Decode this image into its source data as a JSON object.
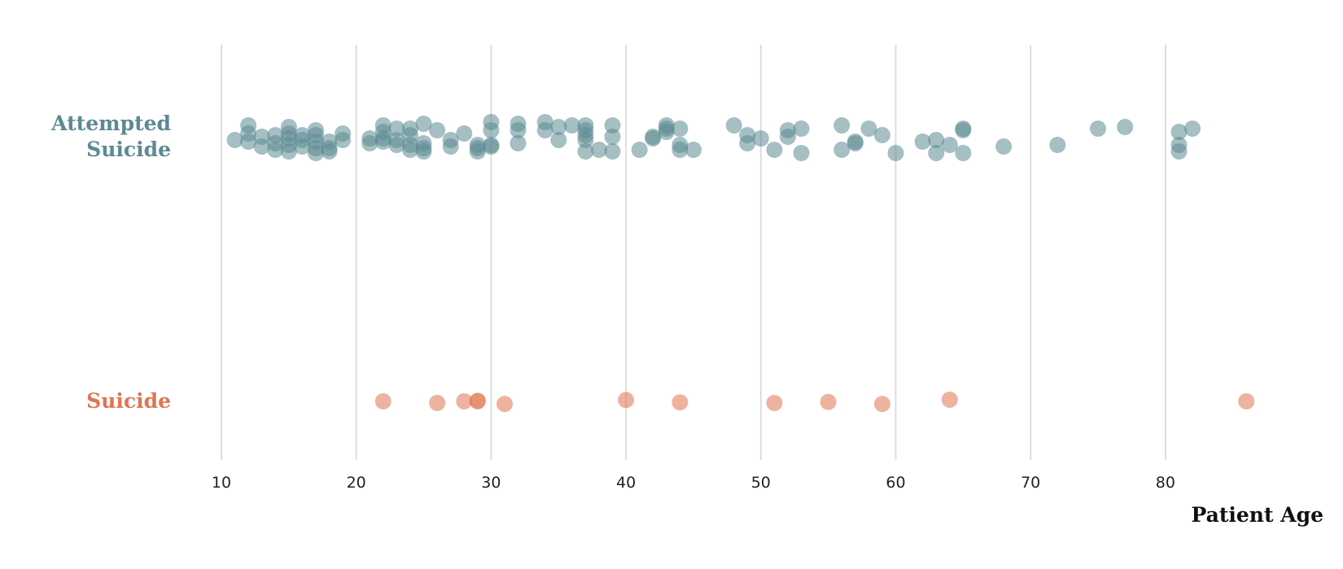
{
  "chart_data": {
    "type": "scatter",
    "title": "",
    "xlabel": "Patient Age",
    "ylabel": "",
    "xlim": [
      10,
      90
    ],
    "xticks": [
      10,
      20,
      30,
      40,
      50,
      60,
      70,
      80
    ],
    "grid": "vertical",
    "legend": "none",
    "categories": [
      "Attempted Suicide",
      "Suicide"
    ],
    "category_label_lines": [
      [
        "Attempted",
        "Suicide"
      ],
      [
        "Suicide"
      ]
    ],
    "series": [
      {
        "category": "Attempted Suicide",
        "color": "#5b8a92",
        "points": [
          {
            "age": 11,
            "j": -0.1
          },
          {
            "age": 12,
            "j": 0.35
          },
          {
            "age": 12,
            "j": -0.15
          },
          {
            "age": 12,
            "j": 0.1
          },
          {
            "age": 13,
            "j": 0.0
          },
          {
            "age": 13,
            "j": -0.3
          },
          {
            "age": 14,
            "j": 0.05
          },
          {
            "age": 14,
            "j": -0.2
          },
          {
            "age": 14,
            "j": -0.4
          },
          {
            "age": 15,
            "j": 0.3
          },
          {
            "age": 15,
            "j": 0.1
          },
          {
            "age": 15,
            "j": -0.05
          },
          {
            "age": 15,
            "j": -0.25
          },
          {
            "age": 15,
            "j": -0.45
          },
          {
            "age": 16,
            "j": 0.05
          },
          {
            "age": 16,
            "j": -0.1
          },
          {
            "age": 16,
            "j": -0.3
          },
          {
            "age": 17,
            "j": 0.2
          },
          {
            "age": 17,
            "j": 0.05
          },
          {
            "age": 17,
            "j": -0.15
          },
          {
            "age": 17,
            "j": -0.35
          },
          {
            "age": 17,
            "j": -0.5
          },
          {
            "age": 18,
            "j": -0.15
          },
          {
            "age": 18,
            "j": -0.35
          },
          {
            "age": 18,
            "j": -0.45
          },
          {
            "age": 19,
            "j": 0.1
          },
          {
            "age": 19,
            "j": -0.1
          },
          {
            "age": 21,
            "j": -0.05
          },
          {
            "age": 21,
            "j": -0.2
          },
          {
            "age": 22,
            "j": 0.35
          },
          {
            "age": 22,
            "j": 0.15
          },
          {
            "age": 22,
            "j": -0.05
          },
          {
            "age": 22,
            "j": -0.15
          },
          {
            "age": 23,
            "j": 0.25
          },
          {
            "age": 23,
            "j": -0.1
          },
          {
            "age": 23,
            "j": -0.25
          },
          {
            "age": 24,
            "j": 0.25
          },
          {
            "age": 24,
            "j": 0.05
          },
          {
            "age": 24,
            "j": -0.25
          },
          {
            "age": 24,
            "j": -0.4
          },
          {
            "age": 25,
            "j": 0.4
          },
          {
            "age": 25,
            "j": -0.2
          },
          {
            "age": 25,
            "j": -0.35
          },
          {
            "age": 25,
            "j": -0.45
          },
          {
            "age": 26,
            "j": 0.2
          },
          {
            "age": 27,
            "j": -0.1
          },
          {
            "age": 27,
            "j": -0.3
          },
          {
            "age": 28,
            "j": 0.1
          },
          {
            "age": 29,
            "j": -0.25
          },
          {
            "age": 29,
            "j": -0.35
          },
          {
            "age": 29,
            "j": -0.45
          },
          {
            "age": 30,
            "j": 0.45
          },
          {
            "age": 30,
            "j": 0.2
          },
          {
            "age": 30,
            "j": -0.3
          },
          {
            "age": 30,
            "j": -0.25
          },
          {
            "age": 32,
            "j": 0.4
          },
          {
            "age": 32,
            "j": 0.2
          },
          {
            "age": 32,
            "j": -0.2
          },
          {
            "age": 34,
            "j": 0.45
          },
          {
            "age": 34,
            "j": 0.2
          },
          {
            "age": 35,
            "j": 0.3
          },
          {
            "age": 35,
            "j": -0.1
          },
          {
            "age": 36,
            "j": 0.35
          },
          {
            "age": 37,
            "j": 0.35
          },
          {
            "age": 37,
            "j": 0.2
          },
          {
            "age": 37,
            "j": 0.05
          },
          {
            "age": 37,
            "j": -0.1
          },
          {
            "age": 37,
            "j": -0.45
          },
          {
            "age": 38,
            "j": -0.4
          },
          {
            "age": 39,
            "j": 0.35
          },
          {
            "age": 39,
            "j": 0.0
          },
          {
            "age": 39,
            "j": -0.45
          },
          {
            "age": 41,
            "j": -0.4
          },
          {
            "age": 42,
            "j": 0.0
          },
          {
            "age": 42,
            "j": -0.05
          },
          {
            "age": 43,
            "j": 0.35
          },
          {
            "age": 43,
            "j": 0.25
          },
          {
            "age": 43,
            "j": 0.15
          },
          {
            "age": 44,
            "j": 0.25
          },
          {
            "age": 44,
            "j": -0.25
          },
          {
            "age": 44,
            "j": -0.4
          },
          {
            "age": 45,
            "j": -0.4
          },
          {
            "age": 48,
            "j": 0.35
          },
          {
            "age": 49,
            "j": 0.05
          },
          {
            "age": 49,
            "j": -0.2
          },
          {
            "age": 50,
            "j": -0.05
          },
          {
            "age": 51,
            "j": -0.4
          },
          {
            "age": 52,
            "j": 0.2
          },
          {
            "age": 52,
            "j": 0.0
          },
          {
            "age": 53,
            "j": 0.25
          },
          {
            "age": 53,
            "j": -0.5
          },
          {
            "age": 56,
            "j": 0.35
          },
          {
            "age": 56,
            "j": -0.4
          },
          {
            "age": 57,
            "j": -0.2
          },
          {
            "age": 57,
            "j": -0.15
          },
          {
            "age": 58,
            "j": 0.25
          },
          {
            "age": 59,
            "j": 0.05
          },
          {
            "age": 60,
            "j": -0.5
          },
          {
            "age": 62,
            "j": -0.15
          },
          {
            "age": 63,
            "j": -0.1
          },
          {
            "age": 63,
            "j": -0.5
          },
          {
            "age": 64,
            "j": -0.25
          },
          {
            "age": 65,
            "j": 0.25
          },
          {
            "age": 65,
            "j": 0.2
          },
          {
            "age": 65,
            "j": -0.5
          },
          {
            "age": 68,
            "j": -0.3
          },
          {
            "age": 72,
            "j": -0.25
          },
          {
            "age": 75,
            "j": 0.25
          },
          {
            "age": 77,
            "j": 0.3
          },
          {
            "age": 81,
            "j": 0.15
          },
          {
            "age": 81,
            "j": -0.25
          },
          {
            "age": 81,
            "j": -0.45
          },
          {
            "age": 82,
            "j": 0.25
          }
        ]
      },
      {
        "category": "Suicide",
        "color": "#de7550",
        "points": [
          {
            "age": 22,
            "j": 0.0
          },
          {
            "age": 26,
            "j": -0.05
          },
          {
            "age": 28,
            "j": 0.0
          },
          {
            "age": 29,
            "j": 0.0
          },
          {
            "age": 29,
            "j": 0.02
          },
          {
            "age": 31,
            "j": -0.08
          },
          {
            "age": 40,
            "j": 0.04
          },
          {
            "age": 44,
            "j": -0.03
          },
          {
            "age": 51,
            "j": -0.05
          },
          {
            "age": 55,
            "j": -0.02
          },
          {
            "age": 59,
            "j": -0.08
          },
          {
            "age": 64,
            "j": 0.05
          },
          {
            "age": 86,
            "j": 0.0
          }
        ]
      }
    ]
  }
}
